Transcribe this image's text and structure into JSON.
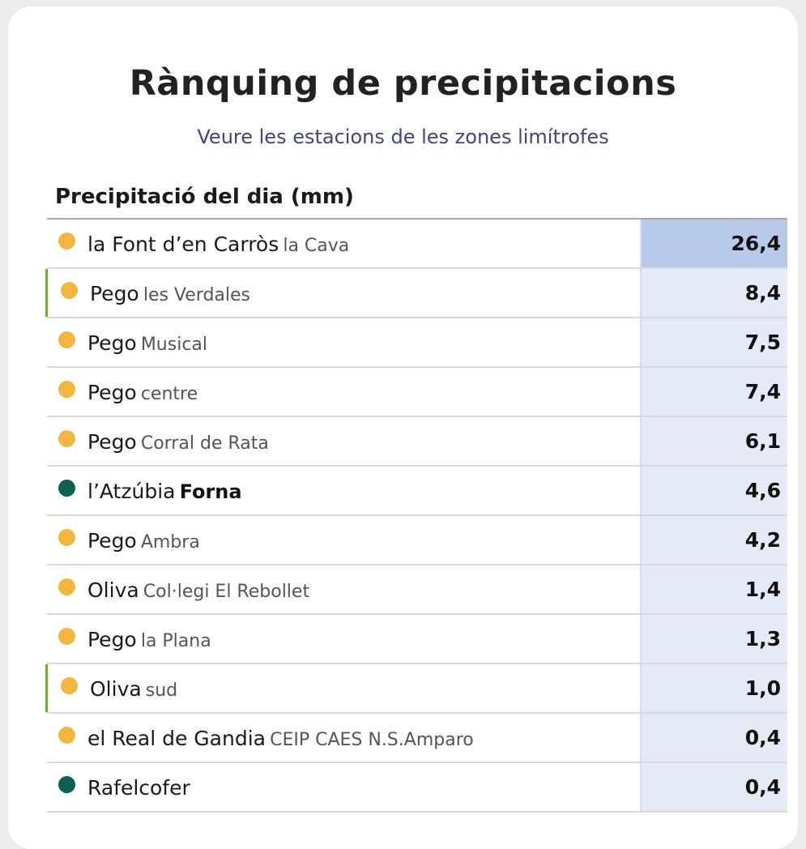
{
  "header": {
    "title": "Rànquing de precipitacions",
    "subtitle": "Veure les estacions de les zones limítrofes",
    "section_title": "Precipitació del dia (mm)"
  },
  "colors": {
    "dot_yellow": "#f2b63f",
    "dot_teal": "#0f5f55",
    "highlight_bar": "#6cae37",
    "value_bg": "#e4ebf6",
    "value_bg_top": "#b7caec"
  },
  "rows": [
    {
      "town": "la Font d’en Carròs",
      "station": "la Cava",
      "value": "26,4",
      "dot": "yellow",
      "highlight": false,
      "top": true,
      "station_bold": false
    },
    {
      "town": "Pego",
      "station": "les Verdales",
      "value": "8,4",
      "dot": "yellow",
      "highlight": true,
      "top": false,
      "station_bold": false
    },
    {
      "town": "Pego",
      "station": "Musical",
      "value": "7,5",
      "dot": "yellow",
      "highlight": false,
      "top": false,
      "station_bold": false
    },
    {
      "town": "Pego",
      "station": "centre",
      "value": "7,4",
      "dot": "yellow",
      "highlight": false,
      "top": false,
      "station_bold": false
    },
    {
      "town": "Pego",
      "station": "Corral de Rata",
      "value": "6,1",
      "dot": "yellow",
      "highlight": false,
      "top": false,
      "station_bold": false
    },
    {
      "town": "l’Atzúbia",
      "station": "Forna",
      "value": "4,6",
      "dot": "teal",
      "highlight": false,
      "top": false,
      "station_bold": true
    },
    {
      "town": "Pego",
      "station": "Ambra",
      "value": "4,2",
      "dot": "yellow",
      "highlight": false,
      "top": false,
      "station_bold": false
    },
    {
      "town": "Oliva",
      "station": "Col·legi El Rebollet",
      "value": "1,4",
      "dot": "yellow",
      "highlight": false,
      "top": false,
      "station_bold": false
    },
    {
      "town": "Pego",
      "station": "la Plana",
      "value": "1,3",
      "dot": "yellow",
      "highlight": false,
      "top": false,
      "station_bold": false
    },
    {
      "town": "Oliva",
      "station": "sud",
      "value": "1,0",
      "dot": "yellow",
      "highlight": true,
      "top": false,
      "station_bold": false
    },
    {
      "town": "el Real de Gandia",
      "station": "CEIP CAES N.S.Amparo",
      "value": "0,4",
      "dot": "yellow",
      "highlight": false,
      "top": false,
      "station_bold": false
    },
    {
      "town": "Rafelcofer",
      "station": "",
      "value": "0,4",
      "dot": "teal",
      "highlight": false,
      "top": false,
      "station_bold": false
    }
  ]
}
